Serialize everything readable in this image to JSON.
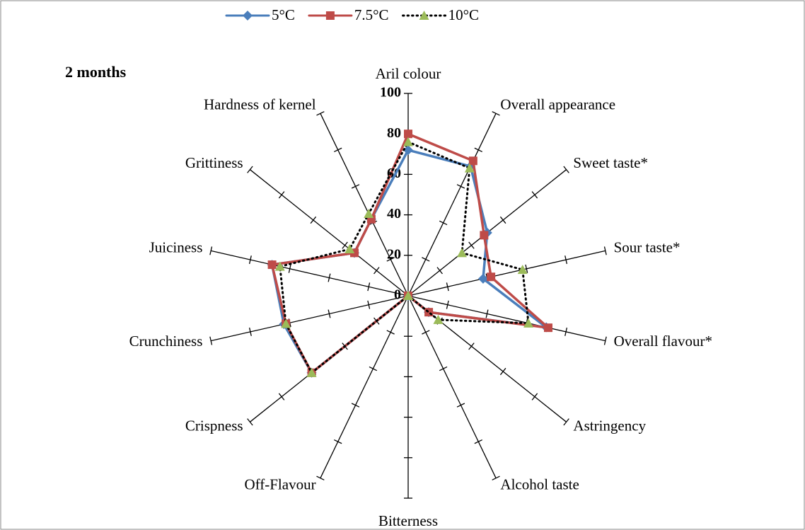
{
  "chart_data": {
    "type": "radar",
    "annotation": "2 months",
    "categories": [
      "Aril colour",
      "Overall appearance",
      "Sweet taste*",
      "Sour taste*",
      "Overall flavour*",
      "Astringency",
      "Alcohol taste",
      "Bitterness",
      "Off-Flavour",
      "Crispness",
      "Crunchiness",
      "Juiciness",
      "Grittiness",
      "Hardness of kernel"
    ],
    "rlim": [
      0,
      100
    ],
    "rticks": [
      0,
      20,
      40,
      60,
      80,
      100
    ],
    "legend": "top",
    "series": [
      {
        "name": "5°C",
        "color": "#4a7ebb",
        "marker": "diamond",
        "line_style": "solid",
        "values": [
          72,
          71,
          50,
          38,
          70,
          13,
          0,
          0,
          0,
          61,
          63,
          69,
          34,
          42
        ]
      },
      {
        "name": "7.5°C",
        "color": "#be4b48",
        "marker": "square",
        "line_style": "solid",
        "values": [
          80,
          74,
          48,
          42,
          71,
          13,
          0,
          0,
          0,
          61,
          62,
          69,
          34,
          42
        ]
      },
      {
        "name": "10°C",
        "color": "#9bbb59",
        "marker": "triangle",
        "line_style": "dotted",
        "values": [
          76,
          70,
          34,
          58,
          61,
          19,
          0,
          0,
          0,
          61,
          62,
          65,
          37,
          45
        ]
      }
    ]
  }
}
